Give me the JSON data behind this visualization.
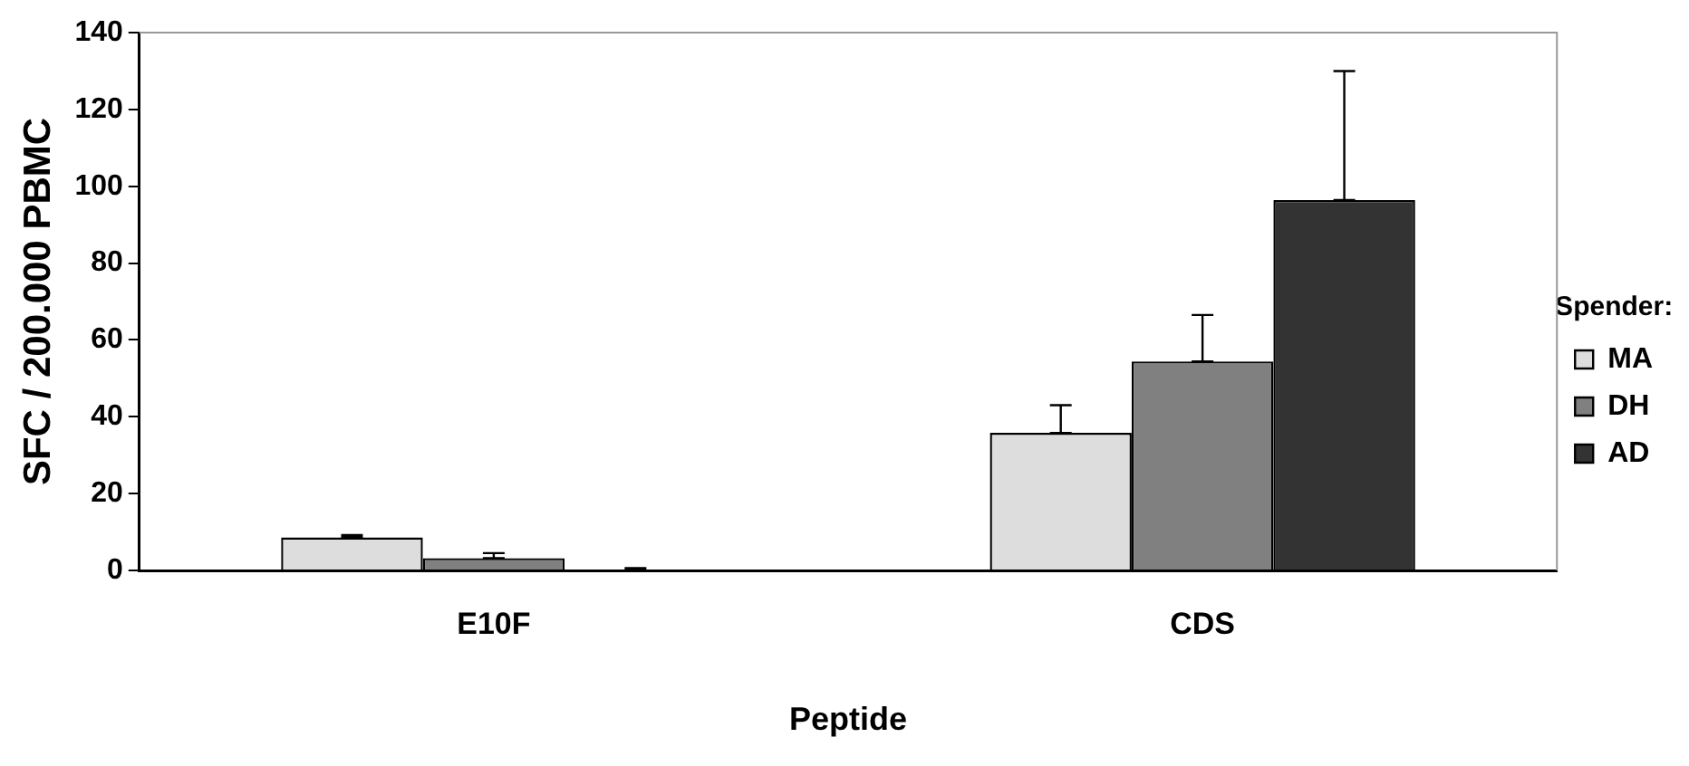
{
  "chart_data": {
    "type": "bar",
    "xlabel": "Peptide",
    "ylabel": "SFC / 200.000 PBMC",
    "legend_title": "Spender:",
    "categories": [
      "E10F",
      "CDS"
    ],
    "series": [
      {
        "name": "MA",
        "color": "#dddddd",
        "values": [
          8.6,
          35.8
        ],
        "errors": [
          [
            8.6,
            9.2
          ],
          [
            35.8,
            43
          ]
        ]
      },
      {
        "name": "DH",
        "color": "#808080",
        "values": [
          3.2,
          54.4
        ],
        "errors": [
          [
            3.2,
            4.5
          ],
          [
            54.4,
            66.5
          ]
        ]
      },
      {
        "name": "AD",
        "color": "#333333",
        "values": [
          0.2,
          96.4
        ],
        "errors": [
          [
            0.2,
            0.6
          ],
          [
            96.4,
            130
          ]
        ]
      }
    ],
    "ylim": [
      0,
      140
    ],
    "yticks": [
      0,
      20,
      40,
      60,
      80,
      100,
      120,
      140
    ],
    "grid": false,
    "legend": "right"
  }
}
